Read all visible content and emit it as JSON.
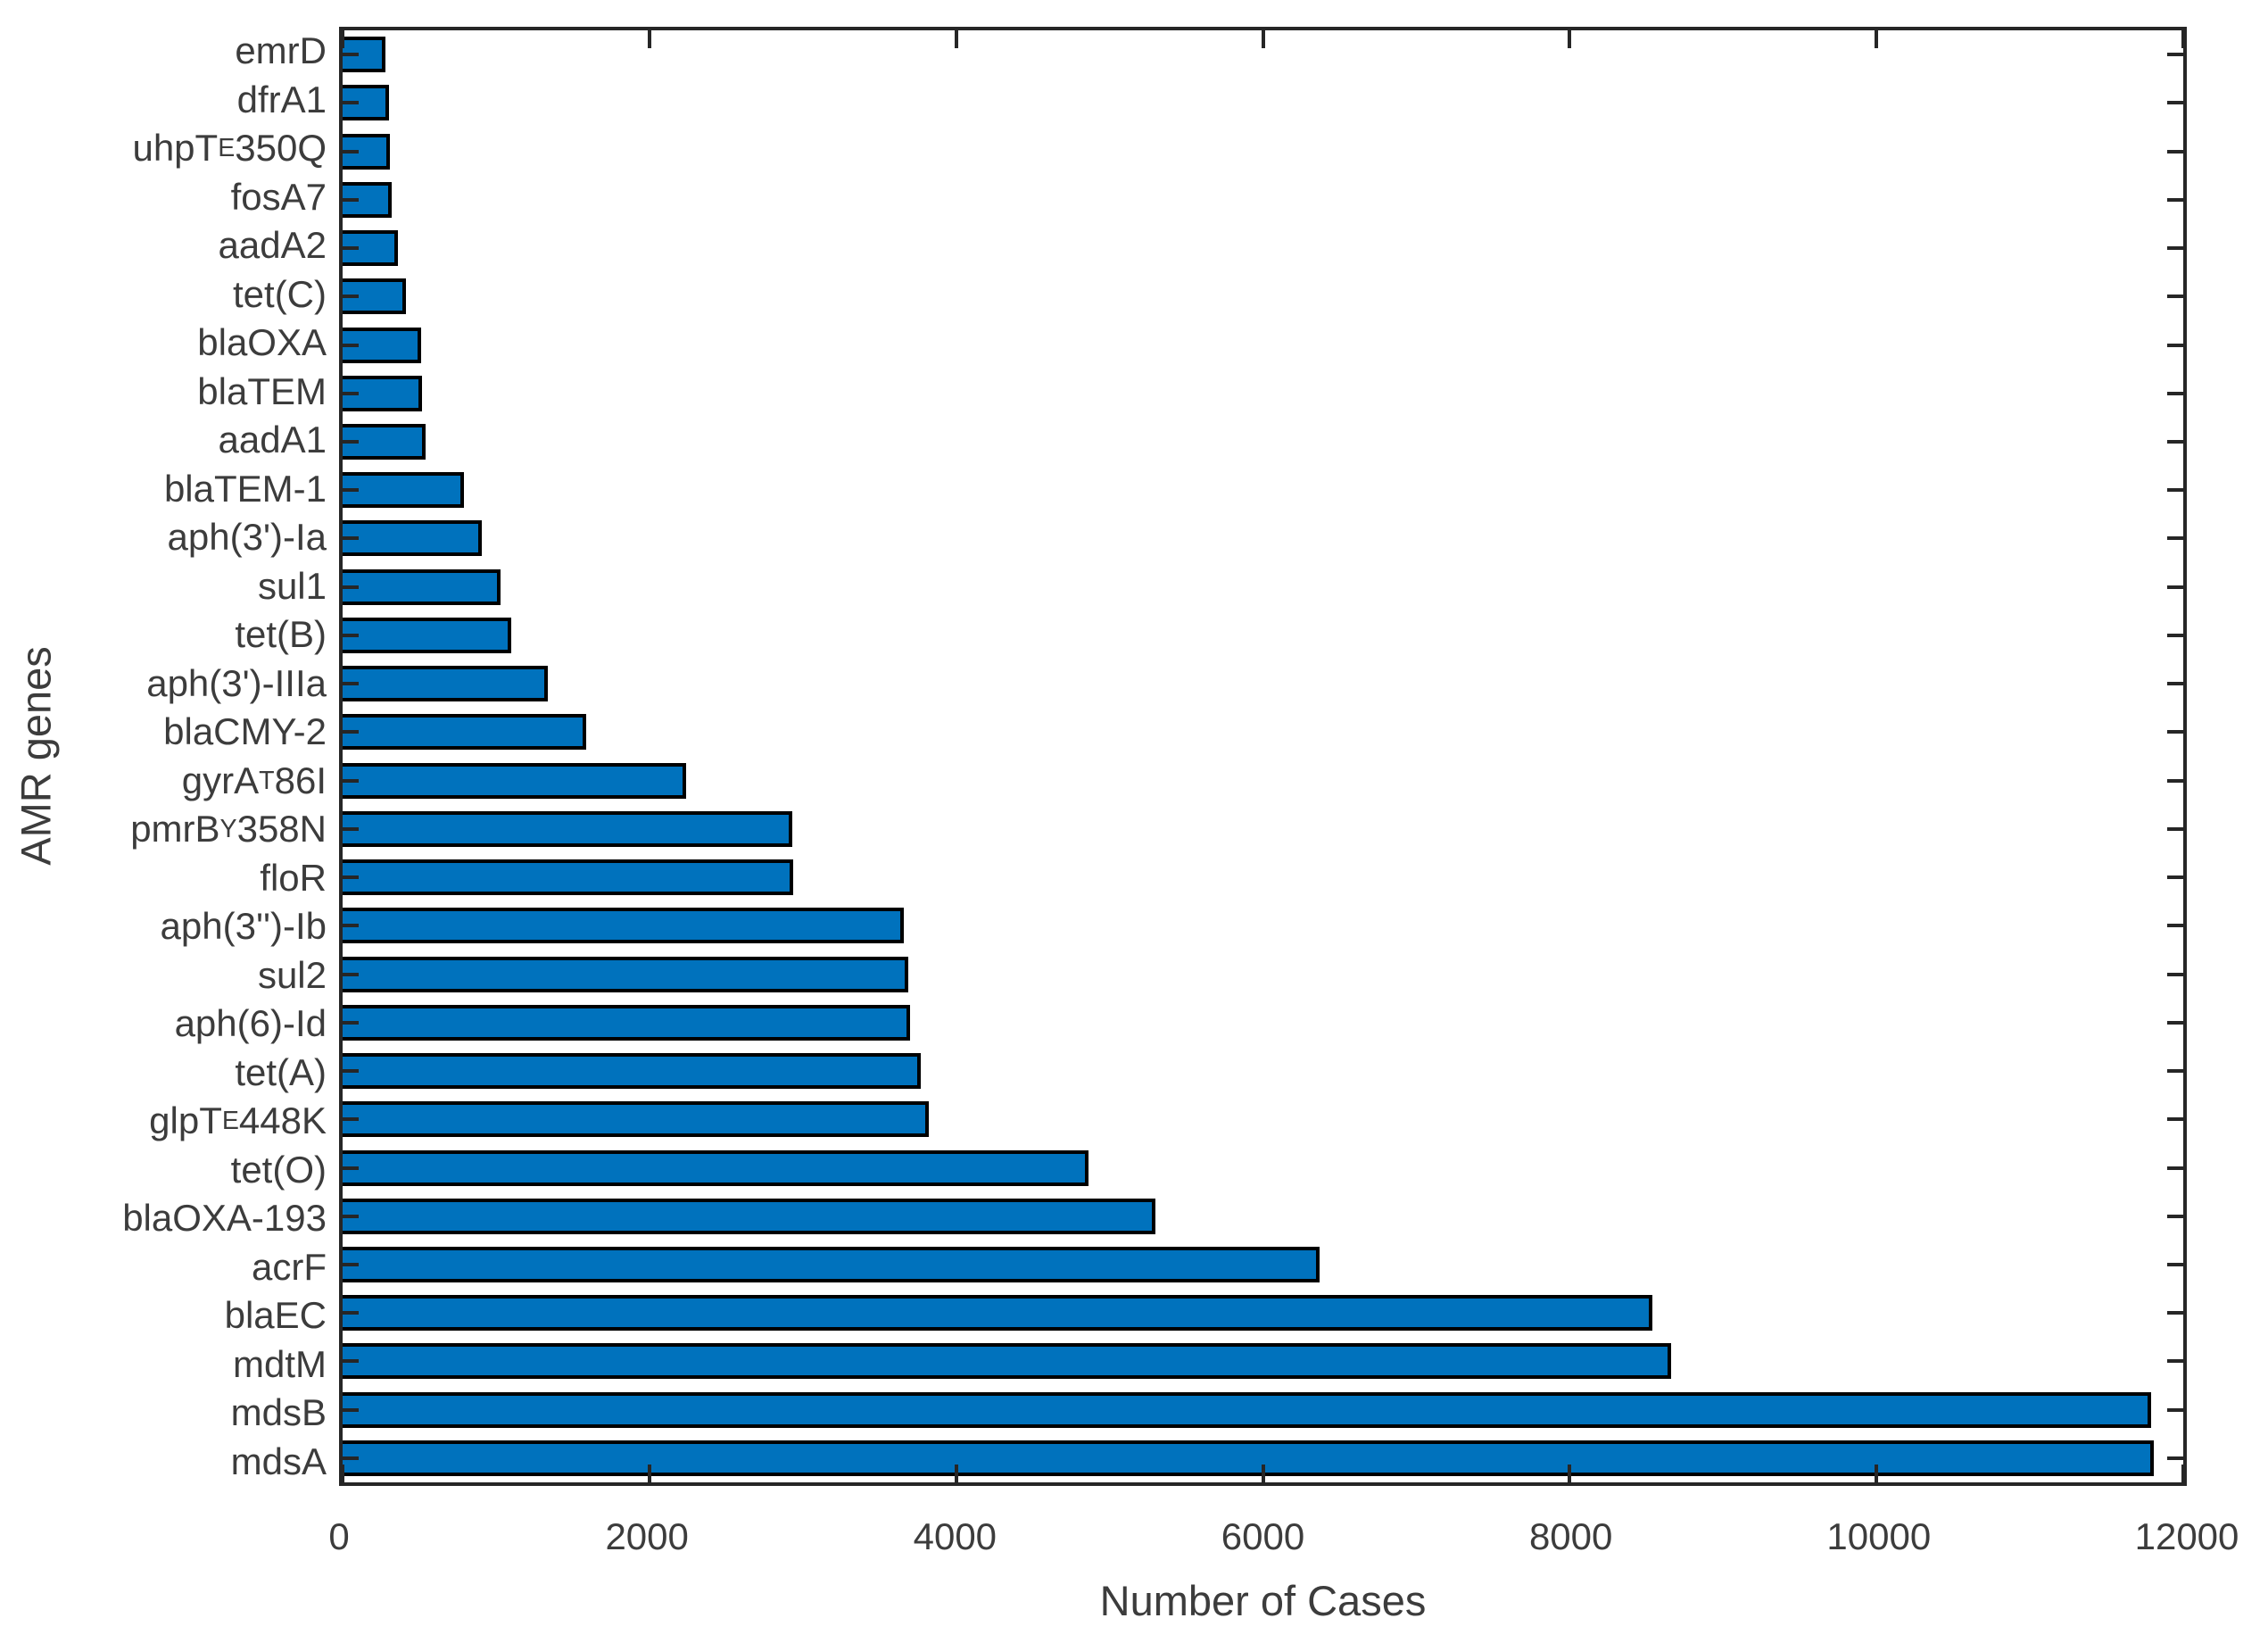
{
  "chart_data": {
    "type": "bar",
    "orientation": "horizontal",
    "title": "",
    "xlabel": "Number of Cases",
    "ylabel": "AMR genes",
    "xlim": [
      0,
      12000
    ],
    "xticks": [
      0,
      2000,
      4000,
      6000,
      8000,
      10000,
      12000
    ],
    "grid": false,
    "legend": "none",
    "bar_color": "#0072BD",
    "bar_edge_color": "#000000",
    "axis_color": "#262626",
    "text_color": "#3c3c3c",
    "categories": [
      {
        "label": "emrD",
        "pre": "emrD",
        "sub": "",
        "post": "",
        "value": 280
      },
      {
        "label": "dfrA1",
        "pre": "dfrA1",
        "sub": "",
        "post": "",
        "value": 305
      },
      {
        "label": "uhpT_E350Q",
        "pre": "uhpT",
        "sub": "E",
        "post": "350Q",
        "value": 310
      },
      {
        "label": "fosA7",
        "pre": "fosA7",
        "sub": "",
        "post": "",
        "value": 320
      },
      {
        "label": "aadA2",
        "pre": "aadA2",
        "sub": "",
        "post": "",
        "value": 360
      },
      {
        "label": "tet(C)",
        "pre": "tet(C)",
        "sub": "",
        "post": "",
        "value": 415
      },
      {
        "label": "blaOXA",
        "pre": "blaOXA",
        "sub": "",
        "post": "",
        "value": 510
      },
      {
        "label": "blaTEM",
        "pre": "blaTEM",
        "sub": "",
        "post": "",
        "value": 515
      },
      {
        "label": "aadA1",
        "pre": "aadA1",
        "sub": "",
        "post": "",
        "value": 540
      },
      {
        "label": "blaTEM-1",
        "pre": "blaTEM-1",
        "sub": "",
        "post": "",
        "value": 790
      },
      {
        "label": "aph(3')-Ia",
        "pre": "aph(3')-Ia",
        "sub": "",
        "post": "",
        "value": 910
      },
      {
        "label": "sul1",
        "pre": "sul1",
        "sub": "",
        "post": "",
        "value": 1030
      },
      {
        "label": "tet(B)",
        "pre": "tet(B)",
        "sub": "",
        "post": "",
        "value": 1100
      },
      {
        "label": "aph(3')-IIIa",
        "pre": "aph(3')-IIIa",
        "sub": "",
        "post": "",
        "value": 1340
      },
      {
        "label": "blaCMY-2",
        "pre": "blaCMY-2",
        "sub": "",
        "post": "",
        "value": 1590
      },
      {
        "label": "gyrA_T86I",
        "pre": "gyrA",
        "sub": "T",
        "post": "86I",
        "value": 2240
      },
      {
        "label": "pmrB_Y358N",
        "pre": "pmrB",
        "sub": "Y",
        "post": "358N",
        "value": 2930
      },
      {
        "label": "floR",
        "pre": "floR",
        "sub": "",
        "post": "",
        "value": 2940
      },
      {
        "label": "aph(3'')-Ib",
        "pre": "aph(3'')-Ib",
        "sub": "",
        "post": "",
        "value": 3660
      },
      {
        "label": "sul2",
        "pre": "sul2",
        "sub": "",
        "post": "",
        "value": 3690
      },
      {
        "label": "aph(6)-Id",
        "pre": "aph(6)-Id",
        "sub": "",
        "post": "",
        "value": 3700
      },
      {
        "label": "tet(A)",
        "pre": "tet(A)",
        "sub": "",
        "post": "",
        "value": 3770
      },
      {
        "label": "glpT_E448K",
        "pre": "glpT",
        "sub": "E",
        "post": "448K",
        "value": 3820
      },
      {
        "label": "tet(O)",
        "pre": "tet(O)",
        "sub": "",
        "post": "",
        "value": 4860
      },
      {
        "label": "blaOXA-193",
        "pre": "blaOXA-193",
        "sub": "",
        "post": "",
        "value": 5300
      },
      {
        "label": "acrF",
        "pre": "acrF",
        "sub": "",
        "post": "",
        "value": 6370
      },
      {
        "label": "blaEC",
        "pre": "blaEC",
        "sub": "",
        "post": "",
        "value": 8540
      },
      {
        "label": "mdtM",
        "pre": "mdtM",
        "sub": "",
        "post": "",
        "value": 8660
      },
      {
        "label": "mdsB",
        "pre": "mdsB",
        "sub": "",
        "post": "",
        "value": 11790
      },
      {
        "label": "mdsA",
        "pre": "mdsA",
        "sub": "",
        "post": "",
        "value": 11810
      }
    ]
  }
}
